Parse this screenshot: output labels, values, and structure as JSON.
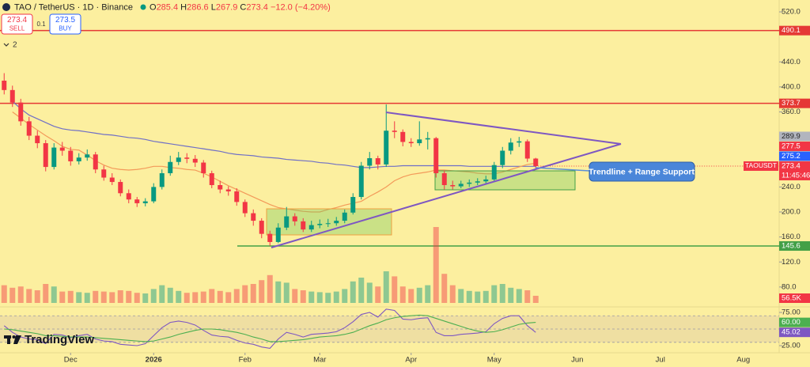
{
  "header": {
    "symbol": "TAO / TetherUS · 1D · Binance",
    "ohlc_letters": [
      "O",
      "H",
      "L",
      "C"
    ],
    "change": "−12.0 (−4.20%)",
    "sell": {
      "price": 273.4,
      "label": "SELL"
    },
    "spread": 0.1,
    "buy": {
      "price": 273.5,
      "label": "BUY"
    },
    "indicator_count": 2,
    "brand": "TradingView"
  },
  "chart_data": [
    {
      "type": "candlestick",
      "categories": [
        null,
        null,
        null,
        null,
        null,
        null,
        null,
        null,
        "Dec",
        null,
        null,
        null,
        null,
        null,
        null,
        null,
        null,
        null,
        "2026",
        null,
        null,
        null,
        null,
        null,
        null,
        null,
        null,
        null,
        null,
        "Feb",
        null,
        null,
        null,
        null,
        null,
        null,
        null,
        null,
        "Mar",
        null,
        null,
        null,
        null,
        null,
        null,
        null,
        null,
        null,
        null,
        "Apr",
        null,
        null,
        null,
        null,
        null,
        null,
        null,
        null,
        null,
        "May",
        null,
        null,
        null,
        null,
        null
      ],
      "future_ticks": [
        "Jun",
        "Jul",
        "Aug"
      ],
      "open": [
        410,
        395,
        375,
        345,
        322,
        310,
        272,
        303,
        298,
        281,
        287,
        292,
        268,
        255,
        248,
        230,
        220,
        214,
        217,
        240,
        262,
        280,
        287,
        285,
        279,
        262,
        243,
        236,
        233,
        216,
        198,
        186,
        165,
        152,
        175,
        193,
        185,
        172,
        179,
        181,
        182,
        186,
        199,
        224,
        274,
        286,
        276,
        330,
        328,
        312,
        310,
        316,
        318,
        262,
        243,
        241,
        245,
        247,
        249,
        252,
        275,
        298,
        311,
        313,
        285.4
      ],
      "high": [
        422,
        402,
        381,
        352,
        330,
        315,
        310,
        312,
        304,
        294,
        300,
        296,
        274,
        262,
        252,
        236,
        224,
        222,
        246,
        268,
        290,
        296,
        294,
        291,
        283,
        266,
        250,
        241,
        238,
        220,
        204,
        190,
        170,
        182,
        208,
        198,
        190,
        186,
        188,
        189,
        192,
        204,
        230,
        280,
        296,
        290,
        372,
        345,
        332,
        318,
        345,
        328,
        320,
        266,
        250,
        250,
        252,
        254,
        258,
        280,
        304,
        318,
        320,
        316,
        286.6
      ],
      "low": [
        388,
        368,
        338,
        315,
        302,
        265,
        268,
        290,
        274,
        276,
        282,
        262,
        250,
        243,
        225,
        214,
        208,
        209,
        214,
        236,
        258,
        275,
        278,
        272,
        255,
        238,
        230,
        226,
        210,
        192,
        178,
        158,
        146,
        150,
        171,
        178,
        168,
        168,
        174,
        176,
        178,
        182,
        196,
        220,
        268,
        268,
        272,
        318,
        305,
        304,
        306,
        300,
        255,
        236,
        236,
        238,
        240,
        243,
        245,
        248,
        270,
        292,
        304,
        280,
        267.9
      ],
      "close": [
        395,
        375,
        345,
        322,
        310,
        272,
        303,
        298,
        281,
        287,
        292,
        268,
        255,
        248,
        230,
        220,
        214,
        217,
        240,
        262,
        280,
        287,
        285,
        279,
        262,
        243,
        236,
        233,
        216,
        198,
        186,
        165,
        152,
        175,
        193,
        185,
        172,
        179,
        181,
        182,
        186,
        199,
        224,
        274,
        286,
        276,
        330,
        328,
        312,
        310,
        316,
        318,
        262,
        243,
        241,
        245,
        247,
        249,
        252,
        275,
        298,
        311,
        313,
        285.4,
        273.4
      ],
      "colors": {
        "up": "#089981",
        "down": "#f23645"
      },
      "ylim": [
        52,
        539
      ],
      "yticks": [
        {
          "value": 520,
          "label": "520.0"
        },
        {
          "value": 440,
          "label": "440.0"
        },
        {
          "value": 400,
          "label": "400.0"
        },
        {
          "value": 360,
          "label": "360.0"
        },
        {
          "value": 240,
          "label": "240.0"
        },
        {
          "value": 200,
          "label": "200.0"
        },
        {
          "value": 160,
          "label": "160.0"
        },
        {
          "value": 120,
          "label": "120.0"
        },
        {
          "value": 80,
          "label": "80.0"
        }
      ],
      "grid": false,
      "levels": [
        {
          "value": 490.1,
          "color": "#e53935"
        },
        {
          "value": 373.7,
          "color": "#e53935"
        },
        {
          "value": 145.6,
          "color": "#43a047"
        }
      ],
      "price_markers": [
        {
          "value": 289.9,
          "color": "#b2b5be"
        },
        {
          "value": 277.5,
          "color": "#f23645"
        },
        {
          "value": 275.2,
          "color": "#2962ff"
        }
      ],
      "last_price": {
        "symbol": "TAOUSDT",
        "countdown": "11:45:46",
        "color": "#f23645"
      },
      "moving_averages": [
        {
          "color": "#6f6fc6",
          "values": [
            null,
            377,
            365,
            355,
            349,
            343,
            337,
            333,
            331,
            330,
            328,
            326,
            324,
            323,
            321,
            319,
            318,
            316,
            313,
            311,
            309,
            307,
            305,
            303,
            301,
            299,
            297,
            294,
            292,
            291,
            290,
            288,
            287,
            286,
            284,
            283,
            282,
            281,
            279,
            278,
            276,
            275,
            273,
            271,
            271,
            272,
            273,
            273,
            274,
            274,
            274,
            274,
            274,
            274,
            274,
            274,
            273,
            273,
            273,
            273,
            273,
            273,
            273,
            273,
            273
          ]
        },
        {
          "color": "#f39a5a",
          "values": [
            null,
            360,
            350,
            340,
            331,
            322,
            314,
            305,
            300,
            299,
            291,
            282,
            275,
            270,
            268,
            267,
            268,
            270,
            273,
            273,
            271,
            270,
            268,
            267,
            262,
            256,
            249,
            242,
            236,
            230,
            224,
            218,
            212,
            207,
            205,
            203,
            201,
            200,
            200,
            204,
            207,
            211,
            214,
            217,
            225,
            232,
            240,
            250,
            256,
            260,
            262,
            264,
            267,
            267,
            266,
            265,
            264,
            262,
            261,
            261,
            264,
            268,
            272,
            276,
            278
          ]
        }
      ],
      "volume": {
        "values": [
          140000,
          120000,
          130000,
          110000,
          100000,
          150000,
          130000,
          90000,
          95000,
          85000,
          80000,
          95000,
          90000,
          85000,
          100000,
          95000,
          80000,
          75000,
          110000,
          140000,
          120000,
          95000,
          80000,
          85000,
          90000,
          110000,
          95000,
          85000,
          110000,
          140000,
          150000,
          180000,
          220000,
          170000,
          160000,
          110000,
          100000,
          90000,
          85000,
          80000,
          90000,
          110000,
          170000,
          200000,
          160000,
          130000,
          250000,
          210000,
          130000,
          110000,
          120000,
          140000,
          600000,
          230000,
          140000,
          110000,
          95000,
          90000,
          95000,
          140000,
          150000,
          120000,
          110000,
          100000,
          56500
        ],
        "last_value_label": "56.5K"
      },
      "annotation": "Trendline + Range Support"
    },
    {
      "type": "line",
      "series": [
        {
          "color": "#7e57c2",
          "values": [
            55,
            45,
            38,
            35,
            34,
            28,
            42,
            41,
            37,
            40,
            42,
            35,
            32,
            31,
            27,
            26,
            25,
            28,
            40,
            52,
            60,
            62,
            60,
            56,
            48,
            41,
            39,
            38,
            33,
            29,
            27,
            23,
            21,
            35,
            45,
            42,
            38,
            42,
            43,
            44,
            46,
            52,
            61,
            72,
            75,
            68,
            80,
            78,
            65,
            64,
            66,
            67,
            45,
            40,
            40,
            42,
            43,
            44,
            46,
            58,
            66,
            70,
            70,
            55,
            45.02
          ]
        },
        {
          "color": "#4caf50",
          "values": [
            50,
            49,
            47,
            45,
            43,
            40,
            40,
            39,
            38,
            38,
            38,
            37,
            36,
            35,
            34,
            33,
            32,
            31,
            32,
            35,
            38,
            42,
            45,
            48,
            50,
            50,
            49,
            47,
            45,
            42,
            38,
            35,
            31,
            31,
            32,
            33,
            34,
            36,
            38,
            39,
            40,
            42,
            45,
            50,
            55,
            59,
            64,
            67,
            69,
            70,
            71,
            70,
            66,
            62,
            58,
            54,
            50,
            47,
            45,
            46,
            49,
            53,
            57,
            59,
            60
          ],
          "last_value_label": "60.00"
        }
      ],
      "ylim": [
        15,
        83
      ],
      "yticks": [
        {
          "value": 75,
          "label": "75.00"
        },
        {
          "value": 25,
          "label": "25.00"
        }
      ],
      "band": {
        "lower": 30,
        "middle": 50,
        "upper": 70
      }
    }
  ]
}
